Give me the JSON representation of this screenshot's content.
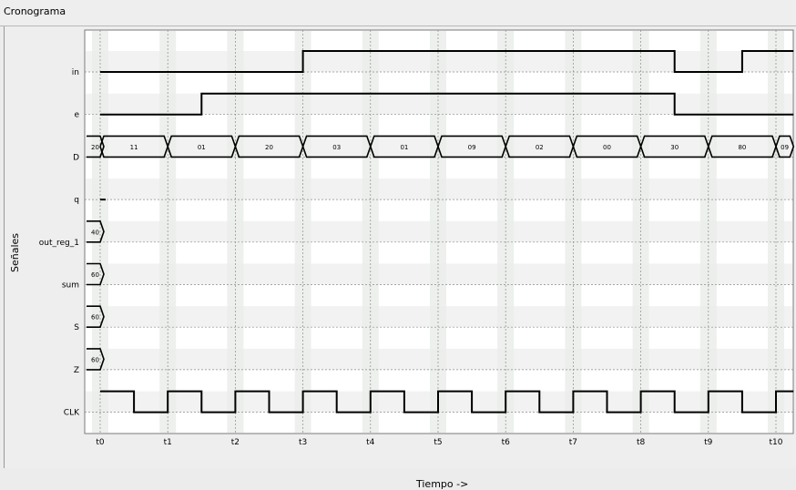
{
  "window": {
    "title": "Cronograma"
  },
  "chart_data": {
    "type": "timing-diagram",
    "xlabel": "Tiempo ->",
    "ylabel": "Señales",
    "time_ticks": [
      "t0",
      "t1",
      "t2",
      "t3",
      "t4",
      "t5",
      "t6",
      "t7",
      "t8",
      "t9",
      "t10"
    ],
    "xlim": [
      -0.16,
      10.26
    ],
    "grid": true,
    "signals": [
      {
        "name": "in",
        "kind": "bit",
        "initial": 0,
        "transitions": [
          [
            3.0,
            1
          ],
          [
            8.5,
            0
          ],
          [
            9.5,
            1
          ]
        ]
      },
      {
        "name": "e",
        "kind": "bit",
        "initial": 0,
        "transitions": [
          [
            1.5,
            1
          ],
          [
            8.5,
            0
          ]
        ]
      },
      {
        "name": "D",
        "kind": "bus",
        "segments": [
          {
            "start": 0.0,
            "end": 0.0,
            "value": "20"
          },
          {
            "start": 0.0,
            "end": 1.0,
            "value": "11"
          },
          {
            "start": 1.0,
            "end": 2.0,
            "value": "01"
          },
          {
            "start": 2.0,
            "end": 3.0,
            "value": "20"
          },
          {
            "start": 3.0,
            "end": 4.0,
            "value": "03"
          },
          {
            "start": 4.0,
            "end": 5.0,
            "value": "01"
          },
          {
            "start": 5.0,
            "end": 6.0,
            "value": "09"
          },
          {
            "start": 6.0,
            "end": 7.0,
            "value": "02"
          },
          {
            "start": 7.0,
            "end": 8.0,
            "value": "00"
          },
          {
            "start": 8.0,
            "end": 9.0,
            "value": "30"
          },
          {
            "start": 9.0,
            "end": 10.0,
            "value": "80"
          },
          {
            "start": 10.0,
            "end": 10.26,
            "value": "09"
          }
        ]
      },
      {
        "name": "q",
        "kind": "bit",
        "initial": 0,
        "transitions": [],
        "end": 0.0
      },
      {
        "name": "out_reg_1",
        "kind": "bus",
        "segments": [
          {
            "start": 0.0,
            "end": 0.0,
            "value": "40"
          }
        ]
      },
      {
        "name": "sum",
        "kind": "bus",
        "segments": [
          {
            "start": 0.0,
            "end": 0.0,
            "value": "60"
          }
        ]
      },
      {
        "name": "S",
        "kind": "bus",
        "segments": [
          {
            "start": 0.0,
            "end": 0.0,
            "value": "60"
          }
        ]
      },
      {
        "name": "Z",
        "kind": "bus",
        "segments": [
          {
            "start": 0.0,
            "end": 0.0,
            "value": "60"
          }
        ]
      },
      {
        "name": "CLK",
        "kind": "clock",
        "period": 1.0,
        "high_first": true
      }
    ],
    "colors": {
      "wave": "#000000",
      "band": "#f2f2f2",
      "grid": "#8c8c8c"
    }
  }
}
